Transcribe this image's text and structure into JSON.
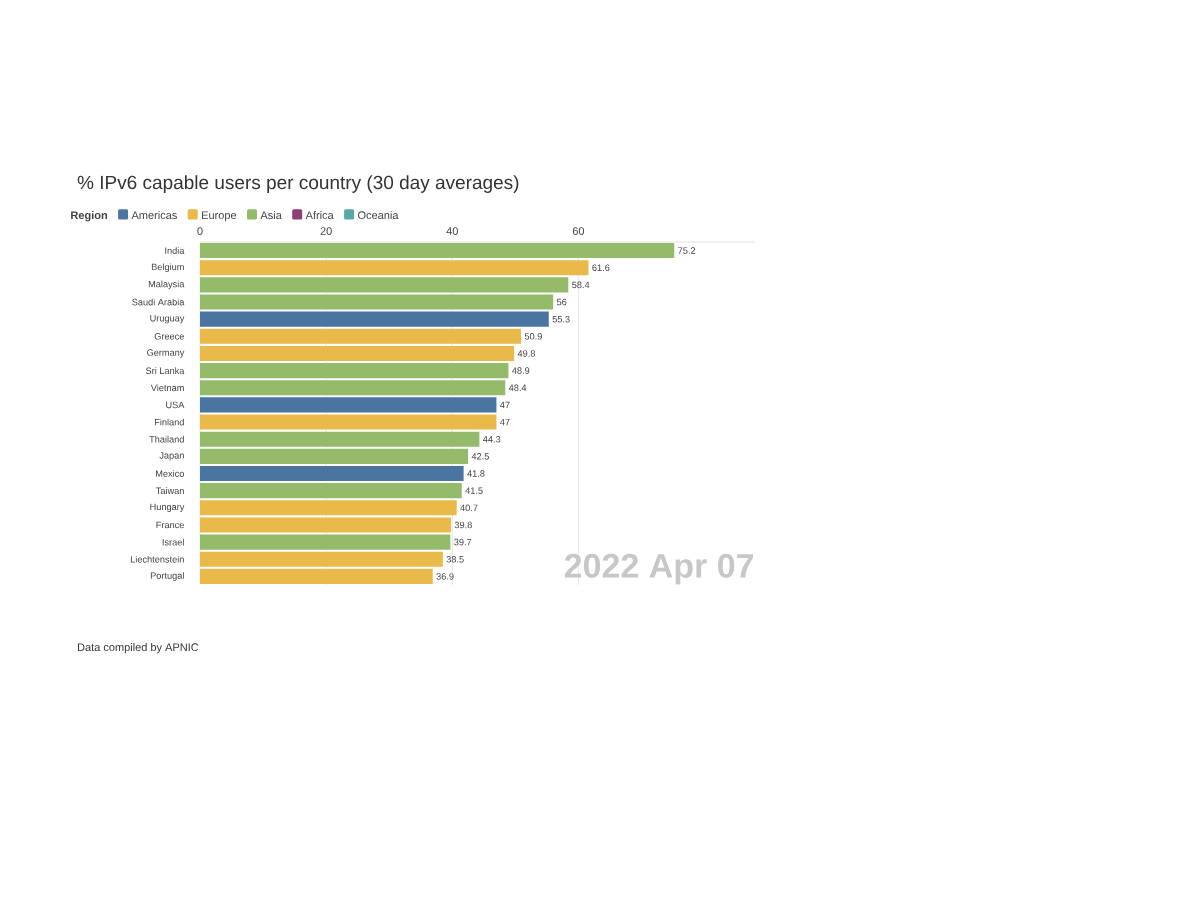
{
  "chart_data": {
    "type": "bar",
    "orientation": "horizontal",
    "title": "% IPv6 capable users per country (30 day averages)",
    "legend_title": "Region",
    "legend": "top left",
    "grid": "x",
    "data_labels": true,
    "categories": [
      "India",
      "Belgium",
      "Malaysia",
      "Saudi Arabia",
      "Uruguay",
      "Greece",
      "Germany",
      "Sri Lanka",
      "Vietnam",
      "USA",
      "Finland",
      "Thailand",
      "Japan",
      "Mexico",
      "Taiwan",
      "Hungary",
      "France",
      "Israel",
      "Liechtenstein",
      "Portugal"
    ],
    "xlim": [
      0,
      88
    ],
    "xticks": [
      0,
      20,
      40,
      60
    ],
    "series": [
      {
        "name": "Americas",
        "color": "#4a75a0",
        "values": [
          null,
          null,
          null,
          null,
          55.3,
          null,
          null,
          null,
          null,
          47,
          null,
          null,
          null,
          41.8,
          null,
          null,
          null,
          null,
          null,
          null
        ]
      },
      {
        "name": "Europe",
        "color": "#e9b949",
        "values": [
          null,
          61.6,
          null,
          null,
          null,
          50.9,
          49.8,
          null,
          null,
          null,
          47,
          null,
          null,
          null,
          null,
          40.7,
          39.8,
          null,
          38.5,
          36.9
        ]
      },
      {
        "name": "Asia",
        "color": "#93bb6a",
        "values": [
          75.2,
          null,
          58.4,
          56,
          null,
          null,
          null,
          48.9,
          48.4,
          null,
          null,
          44.3,
          42.5,
          null,
          41.5,
          null,
          null,
          39.7,
          null,
          null
        ]
      },
      {
        "name": "Africa",
        "color": "#8e3e75",
        "values": [
          null,
          null,
          null,
          null,
          null,
          null,
          null,
          null,
          null,
          null,
          null,
          null,
          null,
          null,
          null,
          null,
          null,
          null,
          null,
          null
        ]
      },
      {
        "name": "Oceania",
        "color": "#58a8a8",
        "values": [
          null,
          null,
          null,
          null,
          null,
          null,
          null,
          null,
          null,
          null,
          null,
          null,
          null,
          null,
          null,
          null,
          null,
          null,
          null,
          null
        ]
      }
    ],
    "annotations": [
      "2022 Apr 07",
      "Data compiled by APNIC"
    ]
  }
}
